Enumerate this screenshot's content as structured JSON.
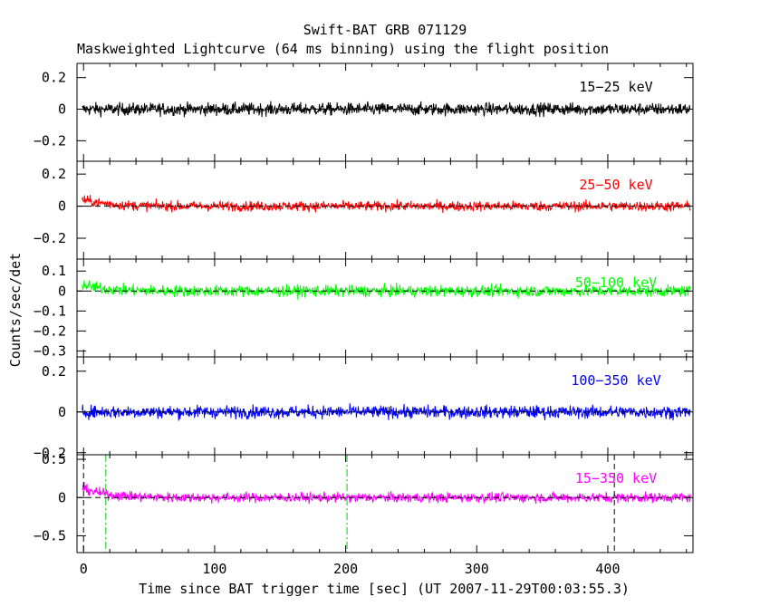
{
  "chart_data": {
    "type": "line",
    "title": "Swift-BAT GRB 071129",
    "subtitle": "Maskweighted Lightcurve (64 ms binning) using the flight position",
    "xlabel": "Time since BAT trigger time [sec] (UT 2007-11-29T00:03:55.3)",
    "ylabel": "Counts/sec/det",
    "xlim": [
      -5,
      465
    ],
    "x_ticks": [
      "0",
      "100",
      "200",
      "300",
      "400"
    ],
    "x_tick_values": [
      0,
      100,
      200,
      300,
      400
    ],
    "vertical_markers": [
      {
        "x": 0,
        "style": "dashed",
        "color": "#000000"
      },
      {
        "x": 17,
        "style": "dashdot",
        "color": "#00cc00"
      },
      {
        "x": 201,
        "style": "dashdot",
        "color": "#00cc00"
      },
      {
        "x": 405,
        "style": "dashed",
        "color": "#000000"
      }
    ],
    "panels": [
      {
        "label": "15−25 keV",
        "color": "#000000",
        "ylim": [
          -0.33,
          0.29
        ],
        "ticks": [
          0.2,
          0,
          -0.2
        ],
        "tick_labels": [
          "0.2",
          "0",
          "−0.2"
        ],
        "mean": 0.0,
        "noise_sigma": 0.028,
        "early_excess": 0.0
      },
      {
        "label": "25−50 keV",
        "color": "#ff0000",
        "ylim": [
          -0.33,
          0.28
        ],
        "ticks": [
          0.2,
          0,
          -0.2
        ],
        "tick_labels": [
          "0.2",
          "0",
          "−0.2"
        ],
        "mean": 0.0,
        "noise_sigma": 0.022,
        "early_excess": 0.04
      },
      {
        "label": "50−100 keV",
        "color": "#00ff00",
        "ylim": [
          -0.33,
          0.16
        ],
        "ticks": [
          0.1,
          0,
          -0.1,
          -0.2,
          -0.3
        ],
        "tick_labels": [
          "0.1",
          "0",
          "−0.1",
          "−0.2",
          "−0.3"
        ],
        "mean": 0.0,
        "noise_sigma": 0.02,
        "early_excess": 0.03
      },
      {
        "label": "100−350 keV",
        "color": "#0000ff",
        "ylim": [
          -0.21,
          0.27
        ],
        "ticks": [
          0.2,
          0,
          -0.2
        ],
        "tick_labels": [
          "0.2",
          "0",
          "−0.2"
        ],
        "mean": 0.0,
        "noise_sigma": 0.022,
        "early_excess": 0.0
      },
      {
        "label": "15−350 keV",
        "color": "#ff00ff",
        "ylim": [
          -0.72,
          0.56
        ],
        "ticks": [
          0.5,
          0,
          -0.5
        ],
        "tick_labels": [
          "0.5",
          "0",
          "−0.5"
        ],
        "mean": 0.0,
        "noise_sigma": 0.045,
        "early_excess": 0.12
      }
    ]
  }
}
